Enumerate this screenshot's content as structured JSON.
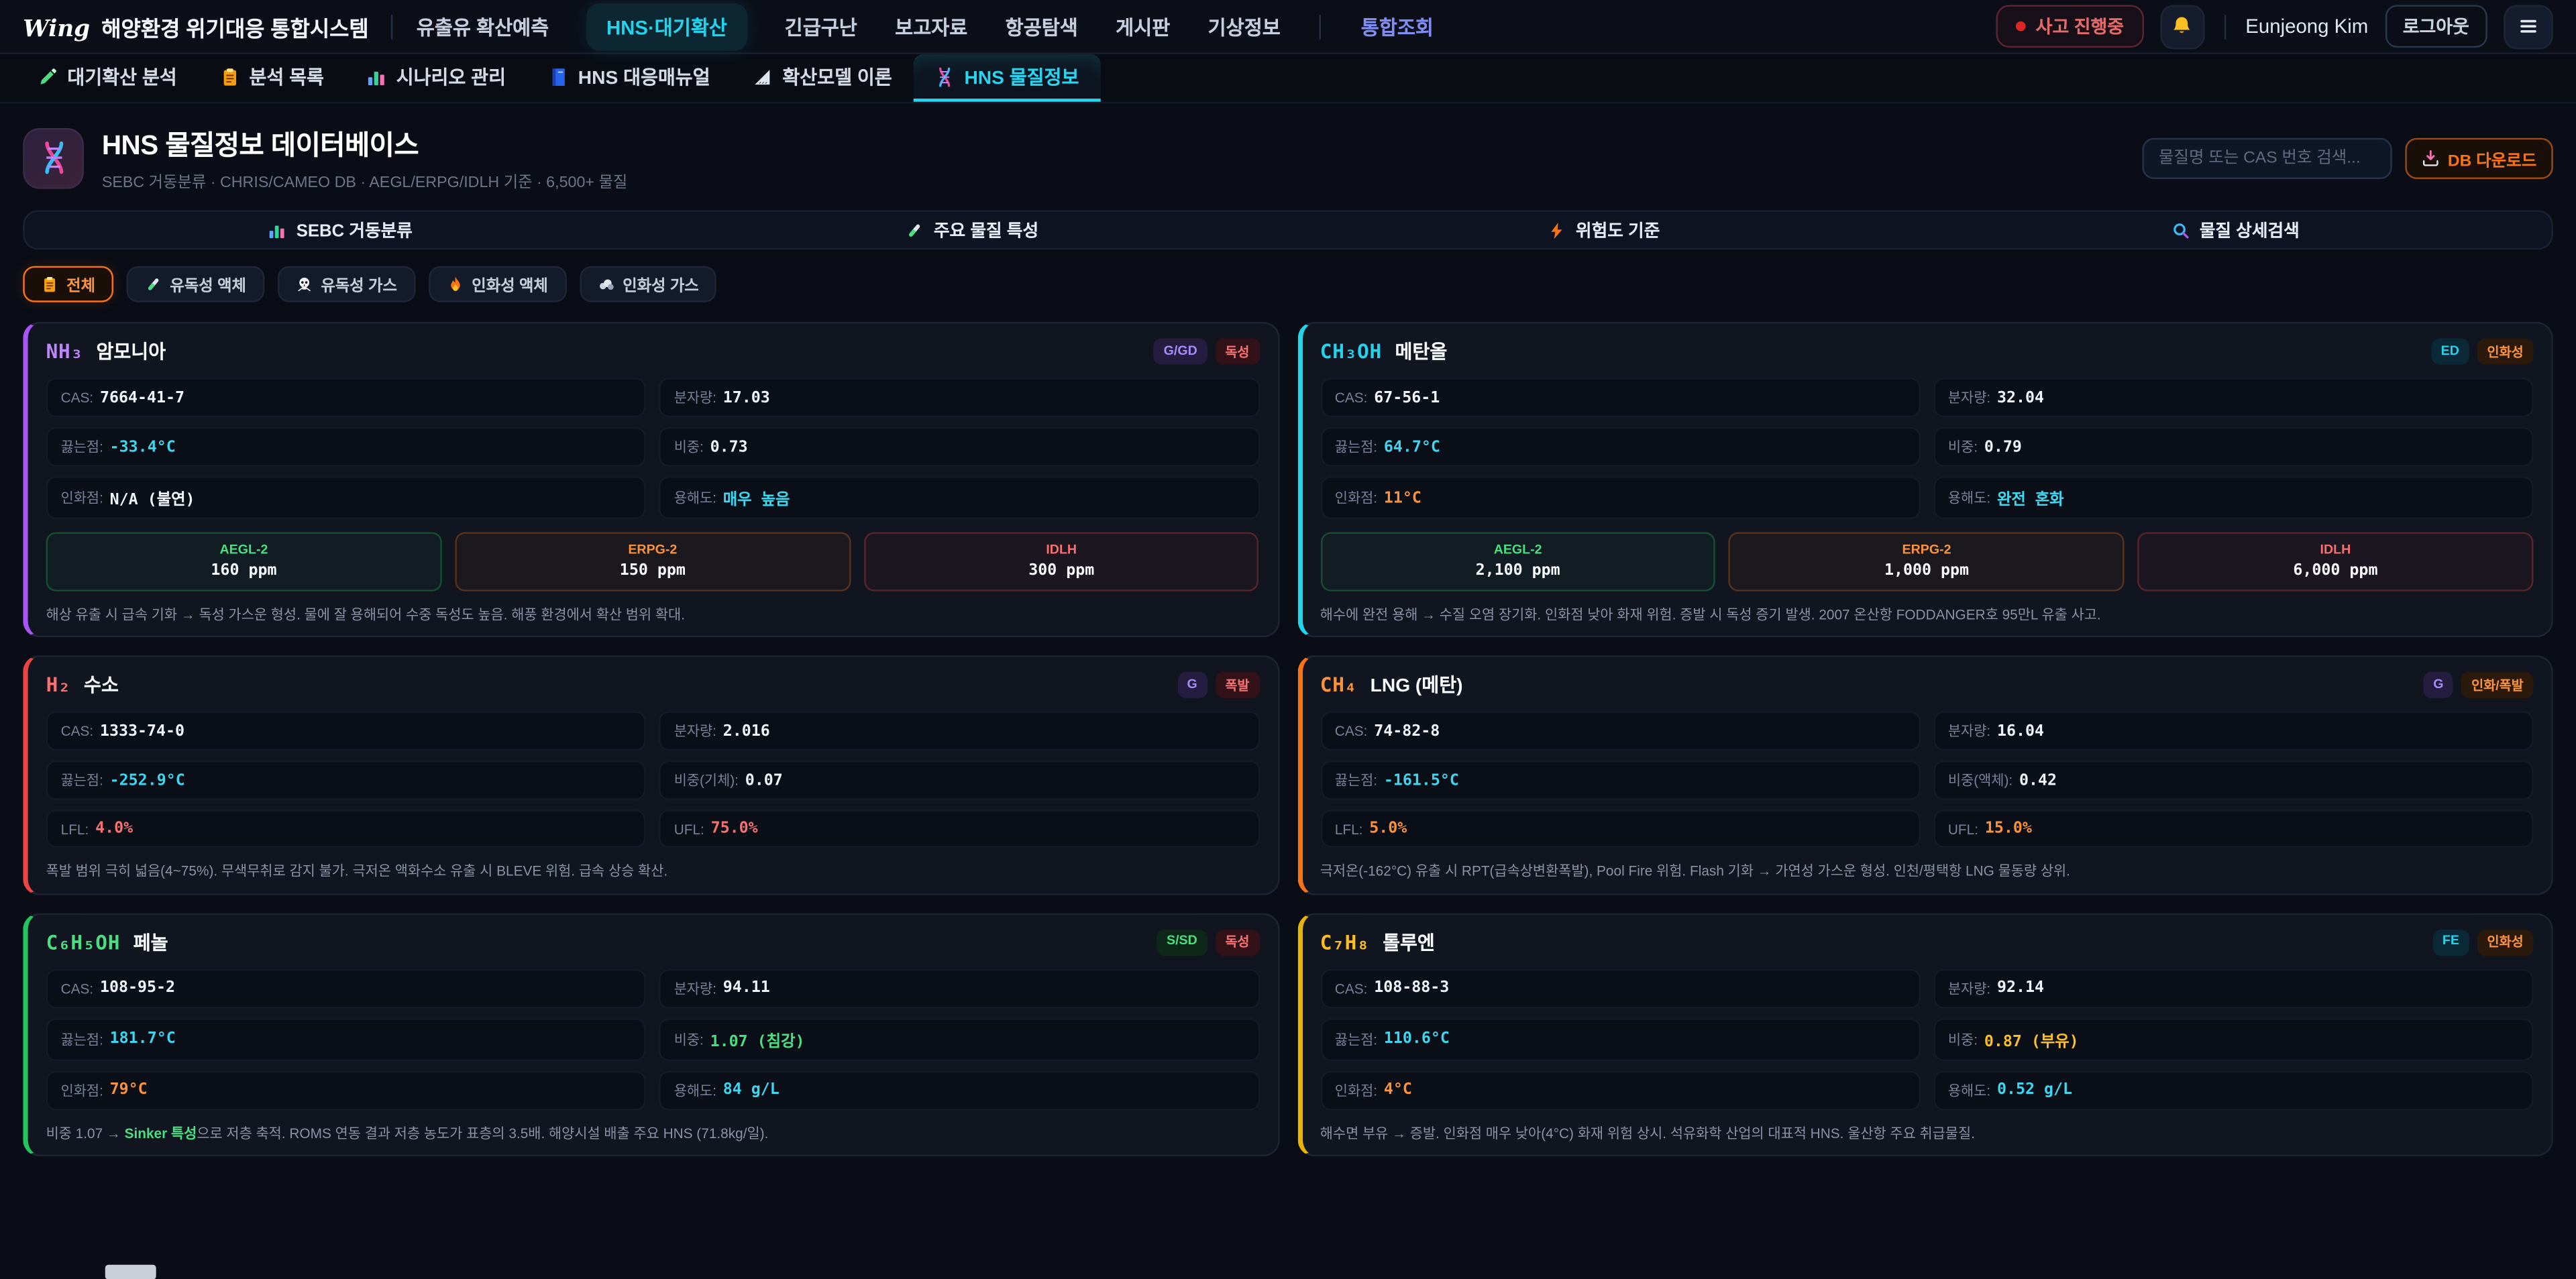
{
  "app": {
    "logo_text": "Wing",
    "title": "해양환경 위기대응 통합시스템",
    "incident_badge": "사고 진행중",
    "user_name": "Eunjeong Kim",
    "logout_label": "로그아웃"
  },
  "nav": {
    "items": [
      {
        "label": "유출유 확산예측",
        "state": "normal"
      },
      {
        "label": "HNS·대기확산",
        "state": "active"
      },
      {
        "label": "긴급구난",
        "state": "normal"
      },
      {
        "label": "보고자료",
        "state": "normal"
      },
      {
        "label": "항공탐색",
        "state": "normal"
      },
      {
        "label": "게시판",
        "state": "normal"
      },
      {
        "label": "기상정보",
        "state": "normal"
      },
      {
        "label": "통합조회",
        "state": "accent"
      }
    ]
  },
  "tabs": [
    {
      "icon": "pen-icon",
      "label": "대기확산 분석",
      "active": false
    },
    {
      "icon": "clipboard-icon",
      "label": "분석 목록",
      "active": false
    },
    {
      "icon": "chart-icon",
      "label": "시나리오 관리",
      "active": false
    },
    {
      "icon": "book-icon",
      "label": "HNS 대응매뉴얼",
      "active": false
    },
    {
      "icon": "ruler-icon",
      "label": "확산모델 이론",
      "active": false
    },
    {
      "icon": "dna-icon",
      "label": "HNS 물질정보",
      "active": true
    }
  ],
  "page_header": {
    "icon": "dna-icon",
    "title": "HNS 물질정보 데이터베이스",
    "subtitle": "SEBC 거동분류 · CHRIS/CAMEO DB · AEGL/ERPG/IDLH 기준 · 6,500+ 물질",
    "search_placeholder": "물질명 또는 CAS 번호 검색...",
    "download_label": "DB 다운로드",
    "download_icon": "download-icon"
  },
  "section_tabs": [
    {
      "icon": "chart-icon",
      "label": "SEBC 거동분류"
    },
    {
      "icon": "tube-icon",
      "label": "주요 물질 특성"
    },
    {
      "icon": "lightning-icon",
      "label": "위험도 기준"
    },
    {
      "icon": "magnifier-icon",
      "label": "물질 상세검색"
    }
  ],
  "filters": [
    {
      "icon": "clipboard-icon",
      "label": "전체",
      "active": true
    },
    {
      "icon": "tube-icon",
      "label": "유독성 액체",
      "active": false
    },
    {
      "icon": "skull-icon",
      "label": "유독성 가스",
      "active": false
    },
    {
      "icon": "fire-icon",
      "label": "인화성 액체",
      "active": false
    },
    {
      "icon": "gas-icon",
      "label": "인화성 가스",
      "active": false
    }
  ],
  "colors": {
    "accent_cyan": "#22d3ee",
    "accent_orange": "#f97316",
    "accent_red": "#ef4444",
    "accent_green": "#22c55e",
    "accent_purple": "#a855f7",
    "accent_yellow": "#eab308"
  },
  "cards": [
    {
      "id": "ammonia",
      "formula": "NH₃",
      "formula_color": "#c084fc",
      "accent": "#a855f7",
      "name": "암모니아",
      "badges": [
        {
          "label": "G/GD",
          "tone": "purple"
        },
        {
          "label": "독성",
          "tone": "red"
        }
      ],
      "fields": [
        {
          "label": "CAS:",
          "value": "7664-41-7",
          "tone": "white"
        },
        {
          "label": "분자량:",
          "value": "17.03",
          "tone": "white"
        },
        {
          "label": "끓는점:",
          "value": "-33.4°C",
          "tone": "cyan"
        },
        {
          "label": "비중:",
          "value": "0.73",
          "tone": "white"
        },
        {
          "label": "인화점:",
          "value": "N/A (불연)",
          "tone": "white"
        },
        {
          "label": "용해도:",
          "value": "매우 높음",
          "tone": "cyan"
        }
      ],
      "thresholds": [
        {
          "label": "AEGL-2",
          "value": "160 ppm",
          "tone": "green"
        },
        {
          "label": "ERPG-2",
          "value": "150 ppm",
          "tone": "orange"
        },
        {
          "label": "IDLH",
          "value": "300 ppm",
          "tone": "red"
        }
      ],
      "note_parts": [
        {
          "text": "해상 유출 시 급속 기화 → 독성 가스운 형성. 물에 잘 용해되어 수중 독성도 높음. 해풍 환경에서 확산 범위 확대."
        }
      ]
    },
    {
      "id": "methanol",
      "formula": "CH₃OH",
      "formula_color": "#22d3ee",
      "accent": "#22d3ee",
      "name": "메탄올",
      "badges": [
        {
          "label": "ED",
          "tone": "cyan"
        },
        {
          "label": "인화성",
          "tone": "orange"
        }
      ],
      "fields": [
        {
          "label": "CAS:",
          "value": "67-56-1",
          "tone": "white"
        },
        {
          "label": "분자량:",
          "value": "32.04",
          "tone": "white"
        },
        {
          "label": "끓는점:",
          "value": "64.7°C",
          "tone": "cyan"
        },
        {
          "label": "비중:",
          "value": "0.79",
          "tone": "white"
        },
        {
          "label": "인화점:",
          "value": "11°C",
          "tone": "orange"
        },
        {
          "label": "용해도:",
          "value": "완전 혼화",
          "tone": "cyan"
        }
      ],
      "thresholds": [
        {
          "label": "AEGL-2",
          "value": "2,100 ppm",
          "tone": "green"
        },
        {
          "label": "ERPG-2",
          "value": "1,000 ppm",
          "tone": "orange"
        },
        {
          "label": "IDLH",
          "value": "6,000 ppm",
          "tone": "red"
        }
      ],
      "note_parts": [
        {
          "text": "해수에 완전 용해 → 수질 오염 장기화. 인화점 낮아 화재 위험. 증발 시 독성 증기 발생. 2007 온산항 FODDANGER호 95만L 유출 사고."
        }
      ]
    },
    {
      "id": "hydrogen",
      "formula": "H₂",
      "formula_color": "#f87171",
      "accent": "#ef4444",
      "name": "수소",
      "badges": [
        {
          "label": "G",
          "tone": "purple"
        },
        {
          "label": "폭발",
          "tone": "red"
        }
      ],
      "fields": [
        {
          "label": "CAS:",
          "value": "1333-74-0",
          "tone": "white"
        },
        {
          "label": "분자량:",
          "value": "2.016",
          "tone": "white"
        },
        {
          "label": "끓는점:",
          "value": "-252.9°C",
          "tone": "cyan"
        },
        {
          "label": "비중(기체):",
          "value": "0.07",
          "tone": "white"
        },
        {
          "label": "LFL:",
          "value": "4.0%",
          "tone": "red"
        },
        {
          "label": "UFL:",
          "value": "75.0%",
          "tone": "red"
        }
      ],
      "thresholds": [],
      "note_parts": [
        {
          "text": "폭발 범위 극히 넓음(4~75%). 무색무취로 감지 불가. 극저온 액화수소 유출 시 BLEVE 위험. 급속 상승 확산."
        }
      ]
    },
    {
      "id": "lng-methane",
      "formula": "CH₄",
      "formula_color": "#fb923c",
      "accent": "#f97316",
      "name": "LNG (메탄)",
      "badges": [
        {
          "label": "G",
          "tone": "purple"
        },
        {
          "label": "인화/폭발",
          "tone": "orange"
        }
      ],
      "fields": [
        {
          "label": "CAS:",
          "value": "74-82-8",
          "tone": "white"
        },
        {
          "label": "분자량:",
          "value": "16.04",
          "tone": "white"
        },
        {
          "label": "끓는점:",
          "value": "-161.5°C",
          "tone": "cyan"
        },
        {
          "label": "비중(액체):",
          "value": "0.42",
          "tone": "white"
        },
        {
          "label": "LFL:",
          "value": "5.0%",
          "tone": "orange"
        },
        {
          "label": "UFL:",
          "value": "15.0%",
          "tone": "orange"
        }
      ],
      "thresholds": [],
      "note_parts": [
        {
          "text": "극저온(-162°C) 유출 시 RPT(급속상변환폭발), Pool Fire 위험. Flash 기화 → 가연성 가스운 형성. 인천/평택항 LNG 물동량 상위."
        }
      ]
    },
    {
      "id": "phenol",
      "formula": "C₆H₅OH",
      "formula_color": "#4ade80",
      "accent": "#22c55e",
      "name": "페놀",
      "badges": [
        {
          "label": "S/SD",
          "tone": "green"
        },
        {
          "label": "독성",
          "tone": "red"
        }
      ],
      "fields": [
        {
          "label": "CAS:",
          "value": "108-95-2",
          "tone": "white"
        },
        {
          "label": "분자량:",
          "value": "94.11",
          "tone": "white"
        },
        {
          "label": "끓는점:",
          "value": "181.7°C",
          "tone": "cyan"
        },
        {
          "label": "비중:",
          "value": "1.07 (침강)",
          "tone": "green"
        },
        {
          "label": "인화점:",
          "value": "79°C",
          "tone": "orange"
        },
        {
          "label": "용해도:",
          "value": "84 g/L",
          "tone": "cyan"
        }
      ],
      "thresholds": [],
      "note_parts": [
        {
          "text": "비중 1.07 → "
        },
        {
          "text": "Sinker 특성",
          "tone": "green"
        },
        {
          "text": "으로 저층 축적. ROMS 연동 결과 저층 농도가 표층의 3.5배. 해양시설 배출 주요 HNS (71.8kg/일)."
        }
      ]
    },
    {
      "id": "toluene",
      "formula": "C₇H₈",
      "formula_color": "#fbbf24",
      "accent": "#eab308",
      "name": "톨루엔",
      "badges": [
        {
          "label": "FE",
          "tone": "cyan"
        },
        {
          "label": "인화성",
          "tone": "orange"
        }
      ],
      "fields": [
        {
          "label": "CAS:",
          "value": "108-88-3",
          "tone": "white"
        },
        {
          "label": "분자량:",
          "value": "92.14",
          "tone": "white"
        },
        {
          "label": "끓는점:",
          "value": "110.6°C",
          "tone": "cyan"
        },
        {
          "label": "비중:",
          "value": "0.87 (부유)",
          "tone": "yellow"
        },
        {
          "label": "인화점:",
          "value": "4°C",
          "tone": "orange"
        },
        {
          "label": "용해도:",
          "value": "0.52 g/L",
          "tone": "cyan"
        }
      ],
      "thresholds": [],
      "note_parts": [
        {
          "text": "해수면 부유 → 증발. 인화점 매우 낮아(4°C) 화재 위험 상시. 석유화학 산업의 대표적 HNS. 울산항 주요 취급물질."
        }
      ]
    }
  ]
}
